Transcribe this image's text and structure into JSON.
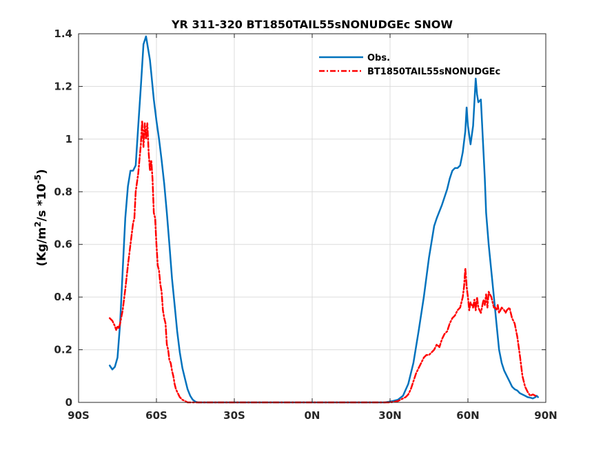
{
  "chart_data": {
    "type": "line",
    "title": "YR 311-320 BT1850TAIL55sNONUDGEc SNOW",
    "ylabel_main": "(Kg/m",
    "ylabel_sup1": "2",
    "ylabel_mid": "/s *10",
    "ylabel_sup2": "-5",
    "ylabel_end": ")",
    "xlim": [
      -90,
      90
    ],
    "ylim": [
      0,
      1.4
    ],
    "grid": true,
    "legend_placement": "top-right",
    "x_ticks": [
      -90,
      -60,
      -30,
      0,
      30,
      60,
      90
    ],
    "x_tick_labels": [
      "90S",
      "60S",
      "30S",
      "0N",
      "30N",
      "60N",
      "90N"
    ],
    "y_ticks": [
      0,
      0.2,
      0.4,
      0.6,
      0.8,
      1,
      1.2,
      1.4
    ],
    "y_tick_labels": [
      "0",
      "0.2",
      "0.4",
      "0.6",
      "0.8",
      "1",
      "1.2",
      "1.4"
    ],
    "series": [
      {
        "name": "Obs.",
        "color": "#0072BD",
        "style": "solid",
        "x": [
          -78,
          -77,
          -76,
          -75,
          -74,
          -73,
          -72,
          -71,
          -70,
          -69,
          -68,
          -67,
          -66,
          -65,
          -64,
          -63,
          -62.5,
          -62,
          -61,
          -60,
          -59,
          -58,
          -57,
          -56,
          -55,
          -54,
          -53,
          -52,
          -51,
          -50,
          -49,
          -48,
          -47,
          -46,
          -45,
          -44,
          -43,
          -42,
          -40,
          -35,
          -30,
          -20,
          -10,
          0,
          10,
          20,
          28,
          31,
          33,
          35,
          37,
          39,
          41,
          43,
          45,
          47,
          48,
          50,
          52,
          53,
          54,
          55,
          56,
          57,
          58,
          59,
          59.5,
          60,
          61,
          62,
          63,
          63.5,
          64,
          65,
          66,
          66.5,
          67,
          68,
          69,
          70,
          71,
          72,
          73,
          74,
          75,
          76,
          77,
          78,
          79,
          80,
          81,
          82,
          83,
          84,
          85,
          86,
          86.5,
          87
        ],
        "values": [
          0.14,
          0.125,
          0.135,
          0.17,
          0.3,
          0.5,
          0.7,
          0.82,
          0.88,
          0.88,
          0.9,
          1.05,
          1.2,
          1.36,
          1.39,
          1.33,
          1.3,
          1.25,
          1.15,
          1.07,
          1.0,
          0.92,
          0.83,
          0.72,
          0.6,
          0.47,
          0.37,
          0.27,
          0.19,
          0.13,
          0.09,
          0.05,
          0.025,
          0.01,
          0.003,
          0.0,
          0.0,
          0.0,
          0.0,
          0.0,
          0.0,
          0.0,
          0.0,
          0.0,
          0.0,
          0.0,
          0.0,
          0.005,
          0.01,
          0.025,
          0.07,
          0.15,
          0.27,
          0.4,
          0.55,
          0.67,
          0.7,
          0.75,
          0.81,
          0.85,
          0.88,
          0.89,
          0.89,
          0.9,
          0.95,
          1.03,
          1.12,
          1.05,
          0.98,
          1.05,
          1.23,
          1.17,
          1.14,
          1.15,
          0.95,
          0.85,
          0.72,
          0.6,
          0.5,
          0.4,
          0.3,
          0.2,
          0.15,
          0.12,
          0.1,
          0.08,
          0.06,
          0.05,
          0.045,
          0.035,
          0.03,
          0.025,
          0.02,
          0.018,
          0.015,
          0.02,
          0.025,
          0.02
        ]
      },
      {
        "name": "BT1850TAIL55sNONUDGEc",
        "color": "#FF0000",
        "style": "dashed",
        "x": [
          -78,
          -77,
          -76,
          -75.5,
          -75,
          -74.5,
          -74,
          -73,
          -72,
          -71,
          -70,
          -69,
          -68.5,
          -68,
          -67,
          -66,
          -65.5,
          -65,
          -64.5,
          -64,
          -63.5,
          -63,
          -62.5,
          -62,
          -61.5,
          -61,
          -60.5,
          -60,
          -59.5,
          -59,
          -58.5,
          -58,
          -57.5,
          -57,
          -56.5,
          -56,
          -55.5,
          -55,
          -54.5,
          -54,
          -53.5,
          -53,
          -52.5,
          -52,
          -51,
          -50,
          -49,
          -48,
          -47,
          -46,
          -45,
          -44,
          -40,
          -30,
          -20,
          -10,
          0,
          10,
          20,
          30,
          32,
          33,
          34,
          35,
          36,
          37,
          38,
          39,
          40,
          41,
          42,
          43,
          44,
          45,
          46,
          47,
          48,
          49,
          50,
          51,
          52,
          53,
          54,
          55,
          56,
          57,
          58,
          58.5,
          59,
          59.5,
          60,
          60.5,
          61,
          62,
          62.5,
          63,
          63.5,
          64,
          65,
          66,
          66.5,
          67,
          67.5,
          68,
          68.5,
          69,
          69.5,
          70,
          70.5,
          71,
          71.5,
          72,
          73,
          74,
          74.5,
          75,
          76,
          77,
          78,
          79,
          80,
          81,
          82,
          83,
          84,
          85,
          86
        ],
        "values": [
          0.32,
          0.31,
          0.29,
          0.275,
          0.29,
          0.28,
          0.3,
          0.35,
          0.43,
          0.52,
          0.6,
          0.68,
          0.7,
          0.8,
          0.87,
          0.98,
          1.07,
          0.97,
          1.06,
          1.0,
          1.06,
          0.95,
          0.88,
          0.92,
          0.85,
          0.72,
          0.7,
          0.6,
          0.52,
          0.5,
          0.45,
          0.42,
          0.35,
          0.32,
          0.3,
          0.22,
          0.2,
          0.16,
          0.15,
          0.12,
          0.1,
          0.07,
          0.05,
          0.04,
          0.02,
          0.01,
          0.005,
          0.0,
          0.0,
          0.0,
          0.0,
          0.0,
          0.0,
          0.0,
          0.0,
          0.0,
          0.0,
          0.0,
          0.0,
          0.0,
          0.003,
          0.005,
          0.01,
          0.015,
          0.02,
          0.03,
          0.05,
          0.08,
          0.11,
          0.13,
          0.15,
          0.17,
          0.18,
          0.18,
          0.19,
          0.2,
          0.22,
          0.21,
          0.24,
          0.26,
          0.27,
          0.3,
          0.32,
          0.33,
          0.35,
          0.36,
          0.4,
          0.44,
          0.51,
          0.44,
          0.4,
          0.35,
          0.38,
          0.36,
          0.39,
          0.35,
          0.4,
          0.36,
          0.34,
          0.39,
          0.37,
          0.41,
          0.36,
          0.42,
          0.41,
          0.4,
          0.38,
          0.36,
          0.36,
          0.35,
          0.37,
          0.34,
          0.36,
          0.35,
          0.34,
          0.35,
          0.36,
          0.32,
          0.3,
          0.25,
          0.18,
          0.1,
          0.06,
          0.04,
          0.025,
          0.03,
          0.025
        ]
      }
    ]
  }
}
